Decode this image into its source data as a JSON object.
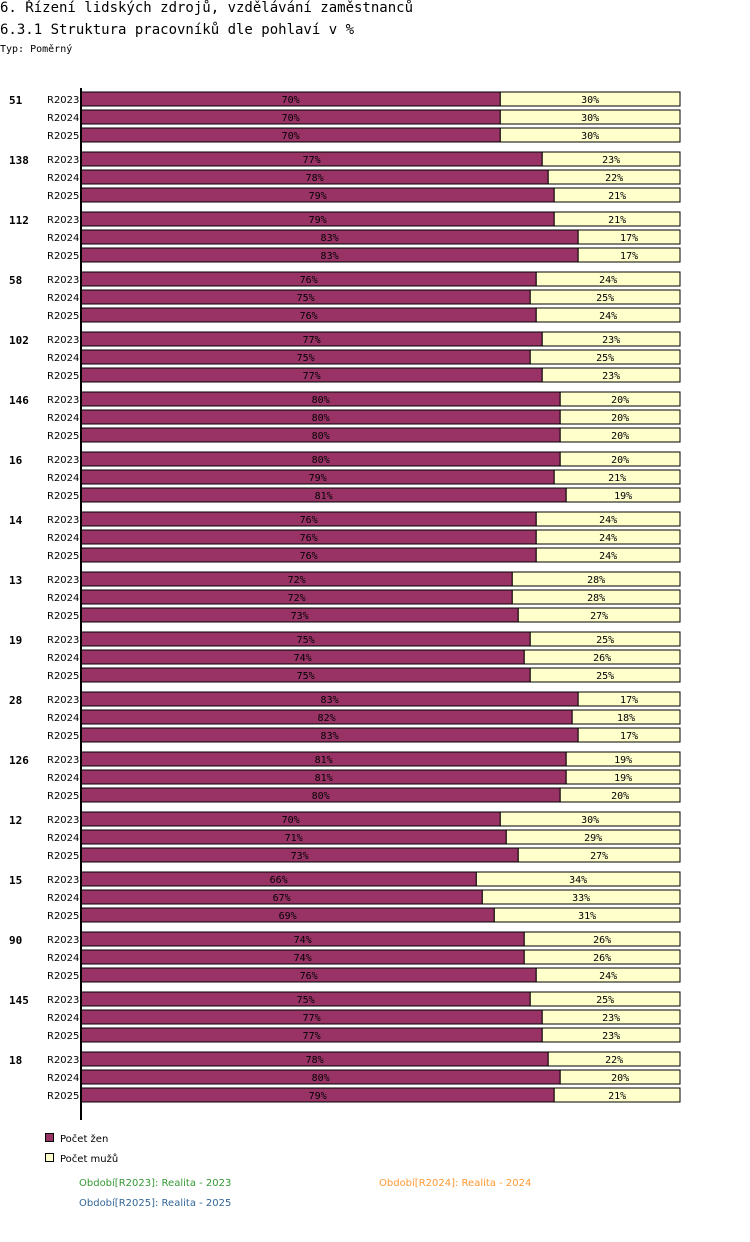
{
  "header": {
    "title": "6. Řízení lidských zdrojů, vzdělávání zaměstnanců",
    "subtitle": "6.3.1 Struktura pracovníků dle pohlaví v %",
    "type_label": "Typ: Poměrný"
  },
  "colors": {
    "women": "#993366",
    "men": "#ffffcc",
    "highlight_group": "#cc0000",
    "period_2023": "#339933",
    "period_2024": "#ff9933",
    "period_2025": "#336699"
  },
  "legend": {
    "women": "Počet žen",
    "men": "Počet mužů"
  },
  "periods": {
    "r2023": "Období[R2023]: Realita - 2023",
    "r2024": "Období[R2024]: Realita - 2024",
    "r2025": "Období[R2025]: Realita - 2025"
  },
  "chart_data": {
    "type": "bar",
    "orientation": "horizontal",
    "stacked": true,
    "title": "6.3.1 Struktura pracovníků dle pohlaví v %",
    "xlim": [
      0,
      100
    ],
    "series_names": [
      "Počet žen",
      "Počet mužů"
    ],
    "period_labels": [
      "R2023",
      "R2024",
      "R2025"
    ],
    "groups": [
      {
        "label": "51",
        "highlight": false,
        "rows": [
          {
            "period": "R2023",
            "women": 70,
            "men": 30
          },
          {
            "period": "R2024",
            "women": 70,
            "men": 30
          },
          {
            "period": "R2025",
            "women": 70,
            "men": 30
          }
        ]
      },
      {
        "label": "138",
        "highlight": false,
        "rows": [
          {
            "period": "R2023",
            "women": 77,
            "men": 23
          },
          {
            "period": "R2024",
            "women": 78,
            "men": 22
          },
          {
            "period": "R2025",
            "women": 79,
            "men": 21
          }
        ]
      },
      {
        "label": "112",
        "highlight": false,
        "rows": [
          {
            "period": "R2023",
            "women": 79,
            "men": 21
          },
          {
            "period": "R2024",
            "women": 83,
            "men": 17
          },
          {
            "period": "R2025",
            "women": 83,
            "men": 17
          }
        ]
      },
      {
        "label": "58",
        "highlight": false,
        "rows": [
          {
            "period": "R2023",
            "women": 76,
            "men": 24
          },
          {
            "period": "R2024",
            "women": 75,
            "men": 25
          },
          {
            "period": "R2025",
            "women": 76,
            "men": 24
          }
        ]
      },
      {
        "label": "102",
        "highlight": false,
        "rows": [
          {
            "period": "R2023",
            "women": 77,
            "men": 23
          },
          {
            "period": "R2024",
            "women": 75,
            "men": 25
          },
          {
            "period": "R2025",
            "women": 77,
            "men": 23
          }
        ]
      },
      {
        "label": "146",
        "highlight": false,
        "rows": [
          {
            "period": "R2023",
            "women": 80,
            "men": 20
          },
          {
            "period": "R2024",
            "women": 80,
            "men": 20
          },
          {
            "period": "R2025",
            "women": 80,
            "men": 20
          }
        ]
      },
      {
        "label": "16",
        "highlight": false,
        "rows": [
          {
            "period": "R2023",
            "women": 80,
            "men": 20
          },
          {
            "period": "R2024",
            "women": 79,
            "men": 21
          },
          {
            "period": "R2025",
            "women": 81,
            "men": 19
          }
        ]
      },
      {
        "label": "14",
        "highlight": false,
        "rows": [
          {
            "period": "R2023",
            "women": 76,
            "men": 24
          },
          {
            "period": "R2024",
            "women": 76,
            "men": 24
          },
          {
            "period": "R2025",
            "women": 76,
            "men": 24
          }
        ]
      },
      {
        "label": "13",
        "highlight": false,
        "rows": [
          {
            "period": "R2023",
            "women": 72,
            "men": 28
          },
          {
            "period": "R2024",
            "women": 72,
            "men": 28
          },
          {
            "period": "R2025",
            "women": 73,
            "men": 27
          }
        ]
      },
      {
        "label": "19",
        "highlight": false,
        "rows": [
          {
            "period": "R2023",
            "women": 75,
            "men": 25
          },
          {
            "period": "R2024",
            "women": 74,
            "men": 26
          },
          {
            "period": "R2025",
            "women": 75,
            "men": 25
          }
        ]
      },
      {
        "label": "28",
        "highlight": false,
        "rows": [
          {
            "period": "R2023",
            "women": 83,
            "men": 17
          },
          {
            "period": "R2024",
            "women": 82,
            "men": 18
          },
          {
            "period": "R2025",
            "women": 83,
            "men": 17
          }
        ]
      },
      {
        "label": "126",
        "highlight": false,
        "rows": [
          {
            "period": "R2023",
            "women": 81,
            "men": 19
          },
          {
            "period": "R2024",
            "women": 81,
            "men": 19
          },
          {
            "period": "R2025",
            "women": 80,
            "men": 20
          }
        ]
      },
      {
        "label": "12",
        "highlight": false,
        "rows": [
          {
            "period": "R2023",
            "women": 70,
            "men": 30
          },
          {
            "period": "R2024",
            "women": 71,
            "men": 29
          },
          {
            "period": "R2025",
            "women": 73,
            "men": 27
          }
        ]
      },
      {
        "label": "15",
        "highlight": false,
        "rows": [
          {
            "period": "R2023",
            "women": 66,
            "men": 34
          },
          {
            "period": "R2024",
            "women": 67,
            "men": 33
          },
          {
            "period": "R2025",
            "women": 69,
            "men": 31
          }
        ]
      },
      {
        "label": "90",
        "highlight": true,
        "rows": [
          {
            "period": "R2023",
            "women": 74,
            "men": 26
          },
          {
            "period": "R2024",
            "women": 74,
            "men": 26
          },
          {
            "period": "R2025",
            "women": 76,
            "men": 24
          }
        ]
      },
      {
        "label": "145",
        "highlight": false,
        "rows": [
          {
            "period": "R2023",
            "women": 75,
            "men": 25
          },
          {
            "period": "R2024",
            "women": 77,
            "men": 23
          },
          {
            "period": "R2025",
            "women": 77,
            "men": 23
          }
        ]
      },
      {
        "label": "18",
        "highlight": false,
        "rows": [
          {
            "period": "R2023",
            "women": 78,
            "men": 22
          },
          {
            "period": "R2024",
            "women": 80,
            "men": 20
          },
          {
            "period": "R2025",
            "women": 79,
            "men": 21
          }
        ]
      }
    ]
  }
}
